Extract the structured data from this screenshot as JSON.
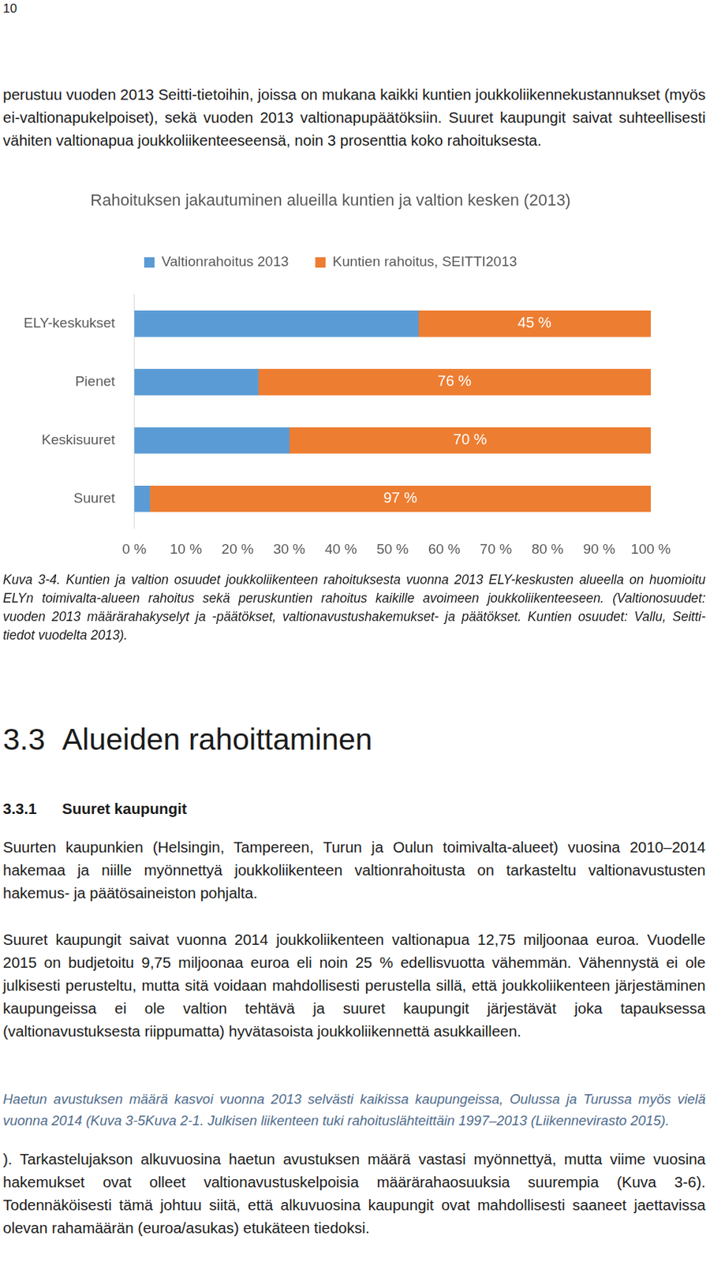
{
  "page_number": "10",
  "intro": "perustuu vuoden 2013 Seitti-tietoihin, joissa on mukana kaikki kuntien joukkoliikennekustannukset (myös ei-valtionapukelpoiset), sekä vuoden 2013 valtionapupäätöksiin. Suuret kaupungit saivat suhteellisesti vähiten valtionapua joukkoliikenteeseensä, noin 3 prosenttia koko rahoituksesta.",
  "chart_data": {
    "type": "bar",
    "title": "Rahoituksen jakautuminen alueilla kuntien ja valtion kesken (2013)",
    "orientation": "horizontal",
    "stacked": true,
    "grid": false,
    "legend": "top",
    "categories": [
      "ELY-keskukset",
      "Pienet",
      "Keskisuuret",
      "Suuret"
    ],
    "series": [
      {
        "name": "Valtionrahoitus 2013",
        "color": "#5b9bd5",
        "values": [
          55,
          24,
          30,
          3
        ]
      },
      {
        "name": "Kuntien rahoitus, SEITTI2013",
        "color": "#ed7d31",
        "values": [
          45,
          76,
          70,
          97
        ],
        "data_labels": true,
        "value_labels": [
          "45 %",
          "76 %",
          "70 %",
          "97 %"
        ]
      }
    ],
    "xlim": [
      0,
      100
    ],
    "xticks": [
      {
        "value": 0,
        "label": "0 %"
      },
      {
        "value": 10,
        "label": "10 %"
      },
      {
        "value": 20,
        "label": "20 %"
      },
      {
        "value": 30,
        "label": "30 %"
      },
      {
        "value": 40,
        "label": "40 %"
      },
      {
        "value": 50,
        "label": "50 %"
      },
      {
        "value": 60,
        "label": "60 %"
      },
      {
        "value": 70,
        "label": "70 %"
      },
      {
        "value": 80,
        "label": "80 %"
      },
      {
        "value": 90,
        "label": "90 %"
      },
      {
        "value": 100,
        "label": "100 %"
      }
    ]
  },
  "caption": "Kuva 3-4. Kuntien ja valtion osuudet joukkoliikenteen rahoituksesta vuonna 2013 ELY-keskusten alueella on huomioitu ELYn toimivalta-alueen rahoitus sekä peruskuntien rahoitus kaikille avoimeen joukkoliikenteeseen. (Valtionosuudet: vuoden 2013 määrärahakyselyt ja -päätökset, valtionavustushakemukset- ja päätökset. Kuntien osuudet: Vallu, Seitti-tiedot vuodelta 2013).",
  "section": {
    "number": "3.3",
    "title": "Alueiden rahoittaminen"
  },
  "subsection": {
    "number": "3.3.1",
    "title": "Suuret kaupungit"
  },
  "body": [
    "Suurten kaupunkien (Helsingin, Tampereen, Turun ja Oulun toimivalta-alueet) vuosina 2010–2014 hakemaa ja niille myönnettyä joukkoliikenteen valtionrahoitusta on tarkasteltu valtionavustusten hakemus- ja päätösaineiston pohjalta.",
    "Suuret kaupungit saivat vuonna 2014 joukkoliikenteen valtionapua 12,75 miljoonaa euroa. Vuodelle 2015 on budjetoitu 9,75 miljoonaa euroa eli noin 25 % edellisvuotta vähemmän. Vähennystä ei ole julkisesti perusteltu, mutta sitä voidaan mahdollisesti perustella sillä, että joukkoliikenteen järjestäminen kaupungeissa ei ole valtion tehtävä ja suuret kaupungit järjestävät joka tapauksessa (valtionavustuksesta riippumatta) hyvätasoista joukkoliikennettä asukkailleen.",
    "Haetun avustuksen määrä kasvoi vuonna 2013 selvästi kaikissa kaupungeissa, Oulussa ja Turussa myös vielä vuonna 2014 (Kuva 3-5Kuva 2-1. Julkisen liikenteen tuki rahoituslähteittäin 1997–2013 (Liikennevirasto 2015).",
    "). Tarkastelujakson alkuvuosina haetun avustuksen määrä vastasi myönnettyä, mutta viime vuosina hakemukset ovat olleet valtionavustuskelpoisia määrärahaosuuksia suurempia (Kuva 3-6). Todennäköisesti tämä johtuu siitä, että alkuvuosina kaupungit ovat mahdollisesti saaneet jaettavissa olevan rahamäärän (euroa/asukas) etukäteen tiedoksi."
  ]
}
